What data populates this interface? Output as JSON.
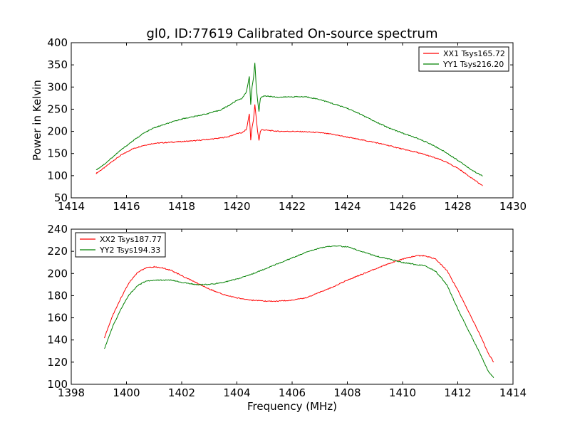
{
  "title": "gl0, ID:77619 Calibrated On-source spectrum",
  "chart_data": [
    {
      "type": "line",
      "xlim": [
        1414,
        1430
      ],
      "ylim": [
        50,
        400
      ],
      "xticks": [
        1414,
        1416,
        1418,
        1420,
        1422,
        1424,
        1426,
        1428,
        1430
      ],
      "yticks": [
        50,
        100,
        150,
        200,
        250,
        300,
        350,
        400
      ],
      "xlabel": "",
      "ylabel": "Power in Kelvin",
      "grid": false,
      "legend_position": "top-right",
      "series": [
        {
          "name": "XX1 Tsys165.72",
          "color": "#ff0000",
          "x": [
            1414.9,
            1415.2,
            1415.5,
            1415.8,
            1416.2,
            1416.6,
            1417.0,
            1417.5,
            1418.0,
            1418.5,
            1419.0,
            1419.4,
            1419.7,
            1420.0,
            1420.2,
            1420.35,
            1420.45,
            1420.5,
            1420.55,
            1420.6,
            1420.65,
            1420.7,
            1420.75,
            1420.8,
            1420.85,
            1420.9,
            1421.0,
            1421.5,
            1422.0,
            1422.5,
            1423.0,
            1423.5,
            1424.0,
            1424.5,
            1425.0,
            1425.5,
            1426.0,
            1426.5,
            1427.0,
            1427.5,
            1428.0,
            1428.5,
            1428.9
          ],
          "y": [
            105,
            118,
            133,
            146,
            160,
            168,
            173,
            175,
            177,
            179,
            182,
            185,
            188,
            195,
            197,
            205,
            240,
            180,
            210,
            225,
            260,
            230,
            200,
            180,
            200,
            204,
            203,
            200,
            200,
            199,
            197,
            193,
            187,
            181,
            175,
            168,
            160,
            153,
            144,
            133,
            117,
            95,
            77
          ]
        },
        {
          "name": "YY1 Tsys216.20",
          "color": "#008000",
          "x": [
            1414.9,
            1415.2,
            1415.5,
            1415.8,
            1416.2,
            1416.6,
            1417.0,
            1417.5,
            1418.0,
            1418.5,
            1419.0,
            1419.4,
            1419.7,
            1420.0,
            1420.2,
            1420.35,
            1420.45,
            1420.5,
            1420.55,
            1420.6,
            1420.65,
            1420.7,
            1420.75,
            1420.8,
            1420.85,
            1420.9,
            1421.0,
            1421.5,
            1422.0,
            1422.5,
            1423.0,
            1423.5,
            1424.0,
            1424.5,
            1425.0,
            1425.5,
            1426.0,
            1426.5,
            1427.0,
            1427.5,
            1428.0,
            1428.5,
            1428.9
          ],
          "y": [
            113,
            126,
            142,
            158,
            177,
            195,
            208,
            218,
            228,
            234,
            241,
            248,
            258,
            270,
            275,
            290,
            325,
            260,
            300,
            320,
            355,
            300,
            270,
            245,
            275,
            278,
            280,
            277,
            278,
            278,
            272,
            262,
            252,
            238,
            222,
            208,
            196,
            185,
            172,
            155,
            135,
            113,
            99
          ]
        }
      ]
    },
    {
      "type": "line",
      "xlim": [
        1398,
        1414
      ],
      "ylim": [
        100,
        240
      ],
      "xticks": [
        1398,
        1400,
        1402,
        1404,
        1406,
        1408,
        1410,
        1412,
        1414
      ],
      "yticks": [
        100,
        120,
        140,
        160,
        180,
        200,
        220,
        240
      ],
      "xlabel": "Frequency (MHz)",
      "ylabel": "",
      "grid": false,
      "legend_position": "top-left",
      "series": [
        {
          "name": "XX2 Tsys187.77",
          "color": "#ff0000",
          "x": [
            1399.2,
            1399.5,
            1399.8,
            1400.1,
            1400.4,
            1400.7,
            1401.0,
            1401.3,
            1401.6,
            1402.0,
            1402.5,
            1403.0,
            1403.5,
            1404.0,
            1404.5,
            1405.0,
            1405.5,
            1406.0,
            1406.5,
            1407.0,
            1407.5,
            1408.0,
            1408.5,
            1409.0,
            1409.5,
            1410.0,
            1410.5,
            1410.8,
            1411.2,
            1411.6,
            1412.0,
            1412.4,
            1412.8,
            1413.1,
            1413.3
          ],
          "y": [
            142,
            162,
            178,
            192,
            201,
            205,
            206,
            205,
            203,
            198,
            192,
            186,
            181,
            178,
            176,
            175,
            175,
            176,
            178,
            183,
            188,
            194,
            199,
            204,
            209,
            213,
            216,
            216,
            213,
            203,
            185,
            165,
            145,
            128,
            120
          ]
        },
        {
          "name": "YY2 Tsys194.33",
          "color": "#008000",
          "x": [
            1399.2,
            1399.5,
            1399.8,
            1400.1,
            1400.4,
            1400.7,
            1401.0,
            1401.3,
            1401.6,
            1402.0,
            1402.5,
            1403.0,
            1403.5,
            1404.0,
            1404.5,
            1405.0,
            1405.5,
            1406.0,
            1406.5,
            1407.0,
            1407.5,
            1408.0,
            1408.5,
            1409.0,
            1409.5,
            1410.0,
            1410.5,
            1410.8,
            1411.2,
            1411.6,
            1412.0,
            1412.4,
            1412.8,
            1413.1,
            1413.3
          ],
          "y": [
            132,
            152,
            168,
            181,
            189,
            193,
            194,
            194,
            194,
            192,
            190,
            190,
            192,
            195,
            199,
            204,
            209,
            214,
            219,
            223,
            225,
            224,
            220,
            216,
            213,
            210,
            208,
            207,
            202,
            190,
            168,
            148,
            128,
            112,
            106
          ]
        }
      ]
    }
  ]
}
